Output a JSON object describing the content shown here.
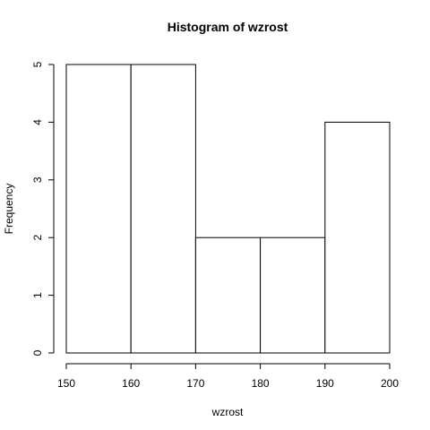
{
  "chart_data": {
    "type": "bar",
    "title": "Histogram of wzrost",
    "xlabel": "wzrost",
    "ylabel": "Frequency",
    "bins": [
      {
        "from": 150,
        "to": 160,
        "value": 5
      },
      {
        "from": 160,
        "to": 170,
        "value": 5
      },
      {
        "from": 170,
        "to": 180,
        "value": 2
      },
      {
        "from": 180,
        "to": 190,
        "value": 2
      },
      {
        "from": 190,
        "to": 200,
        "value": 4
      }
    ],
    "xlim": [
      150,
      200
    ],
    "ylim": [
      0,
      5
    ],
    "x_ticks": [
      "150",
      "160",
      "170",
      "180",
      "190",
      "200"
    ],
    "y_ticks": [
      "0",
      "1",
      "2",
      "3",
      "4",
      "5"
    ],
    "grid": false,
    "legend": "none"
  }
}
